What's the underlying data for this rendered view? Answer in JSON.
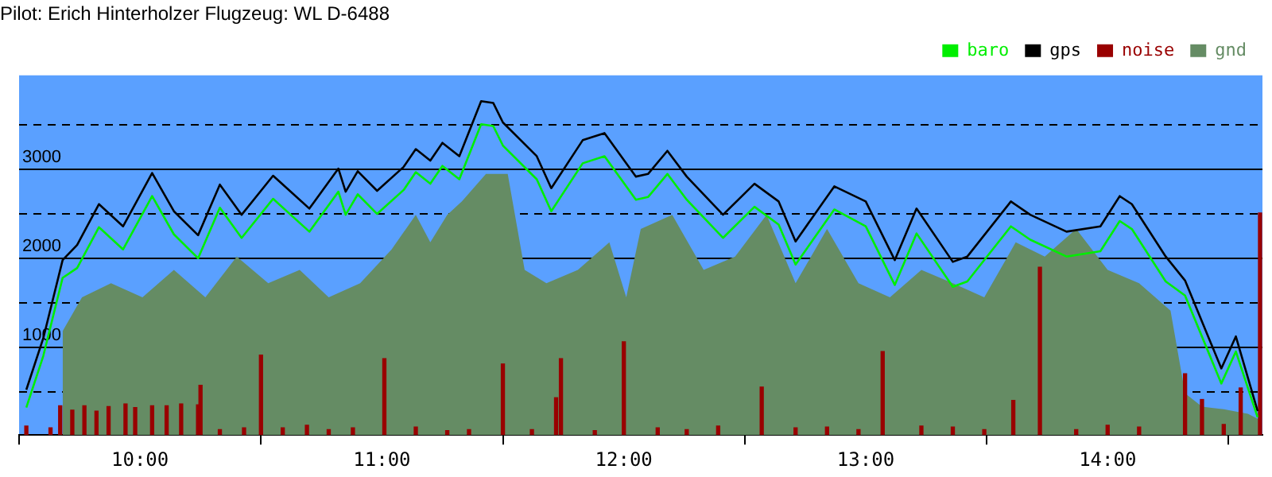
{
  "chart_data": {
    "type": "line",
    "title": "Pilot: Erich Hinterholzer Flugzeug: WL D-6488",
    "x": [
      9.53,
      9.6,
      9.68,
      9.74,
      9.83,
      9.93,
      10.05,
      10.14,
      10.24,
      10.33,
      10.42,
      10.55,
      10.7,
      10.82,
      10.85,
      10.9,
      10.98,
      11.09,
      11.14,
      11.2,
      11.25,
      11.32,
      11.41,
      11.46,
      11.5,
      11.64,
      11.7,
      11.83,
      11.92,
      12.05,
      12.1,
      12.18,
      12.26,
      12.41,
      12.54,
      12.64,
      12.71,
      12.87,
      13,
      13.12,
      13.21,
      13.36,
      13.42,
      13.6,
      13.68,
      13.83,
      13.97,
      14.05,
      14.1,
      14.24,
      14.32,
      14.47,
      14.53,
      14.62
    ],
    "series": [
      {
        "name": "baro",
        "color": "#00ee00",
        "values": [
          310,
          890,
          1770,
          1880,
          2340,
          2090,
          2690,
          2260,
          1990,
          2560,
          2220,
          2660,
          2290,
          2740,
          2480,
          2710,
          2490,
          2760,
          2960,
          2830,
          3030,
          2880,
          3500,
          3480,
          3260,
          2880,
          2520,
          3060,
          3140,
          2650,
          2680,
          2940,
          2650,
          2220,
          2570,
          2370,
          1920,
          2540,
          2350,
          1690,
          2270,
          1670,
          1730,
          2350,
          2200,
          2010,
          2070,
          2410,
          2320,
          1730,
          1570,
          580,
          940,
          200
        ]
      },
      {
        "name": "gps",
        "color": "#000000",
        "values": [
          510,
          1090,
          1970,
          2140,
          2600,
          2350,
          2950,
          2520,
          2250,
          2820,
          2480,
          2920,
          2550,
          3000,
          2740,
          2970,
          2750,
          3020,
          3220,
          3090,
          3290,
          3140,
          3760,
          3740,
          3520,
          3140,
          2780,
          3320,
          3400,
          2910,
          2940,
          3200,
          2910,
          2480,
          2830,
          2630,
          2180,
          2800,
          2630,
          1970,
          2550,
          1950,
          2010,
          2630,
          2480,
          2290,
          2350,
          2690,
          2600,
          2010,
          1740,
          750,
          1110,
          270
        ]
      },
      {
        "name": "noise",
        "type": "bar",
        "color": "#990000",
        "x": [
          9.53,
          9.63,
          9.67,
          9.72,
          9.77,
          9.82,
          9.87,
          9.94,
          9.98,
          10.05,
          10.11,
          10.17,
          10.24,
          10.25,
          10.33,
          10.43,
          10.5,
          10.59,
          10.69,
          10.78,
          10.88,
          11.01,
          11.14,
          11.27,
          11.36,
          11.5,
          11.62,
          11.72,
          11.74,
          11.88,
          12,
          12.14,
          12.26,
          12.39,
          12.57,
          12.71,
          12.84,
          12.97,
          13.07,
          13.23,
          13.36,
          13.49,
          13.61,
          13.72,
          13.87,
          14,
          14.13,
          14.32,
          14.39,
          14.48,
          14.55,
          14.63
        ],
        "values": [
          100,
          80,
          330,
          280,
          330,
          270,
          320,
          350,
          310,
          330,
          330,
          350,
          340,
          560,
          60,
          80,
          900,
          80,
          110,
          60,
          80,
          860,
          90,
          50,
          60,
          800,
          60,
          420,
          860,
          50,
          1050,
          80,
          60,
          100,
          540,
          80,
          90,
          60,
          940,
          100,
          90,
          60,
          390,
          1890,
          60,
          110,
          90,
          690,
          400,
          120,
          530,
          2500
        ]
      },
      {
        "name": "gnd",
        "type": "area",
        "color": "#658c64",
        "x": [
          9.68,
          9.76,
          9.88,
          10.01,
          10.14,
          10.27,
          10.4,
          10.53,
          10.66,
          10.78,
          10.91,
          11.04,
          11.14,
          11.2,
          11.27,
          11.33,
          11.43,
          11.52,
          11.59,
          11.68,
          11.81,
          11.94,
          12.01,
          12.07,
          12.2,
          12.33,
          12.46,
          12.59,
          12.71,
          12.84,
          12.97,
          13.1,
          13.23,
          13.36,
          13.49,
          13.62,
          13.74,
          13.87,
          14,
          14.13,
          14.26,
          14.32,
          14.39,
          14.48,
          14.58,
          14.63
        ],
        "values": [
          1170,
          1550,
          1710,
          1550,
          1860,
          1550,
          2010,
          1710,
          1860,
          1550,
          1710,
          2090,
          2480,
          2170,
          2480,
          2630,
          2940,
          2940,
          1860,
          1710,
          1860,
          2170,
          1550,
          2320,
          2480,
          1860,
          2010,
          2480,
          1710,
          2320,
          1710,
          1550,
          1860,
          1710,
          1550,
          2170,
          2010,
          2320,
          1860,
          1710,
          1400,
          470,
          320,
          290,
          240,
          170
        ]
      }
    ],
    "xlim": [
      9.5,
      14.64
    ],
    "xticks": [
      {
        "value": 10,
        "label": "10:00"
      },
      {
        "value": 11,
        "label": "11:00"
      },
      {
        "value": 12,
        "label": "12:00"
      },
      {
        "value": 13,
        "label": "13:00"
      },
      {
        "value": 14,
        "label": "14:00"
      }
    ],
    "ylim": [
      0,
      4050
    ],
    "yticks": [
      {
        "value": 500,
        "label": null
      },
      1000,
      {
        "value": 1500,
        "label": null
      },
      2000,
      {
        "value": 2500,
        "label": null
      },
      3000,
      {
        "value": 3500,
        "label": null
      }
    ],
    "grid": "y",
    "legend": "top right",
    "marker": "none",
    "line_style": "solid"
  }
}
